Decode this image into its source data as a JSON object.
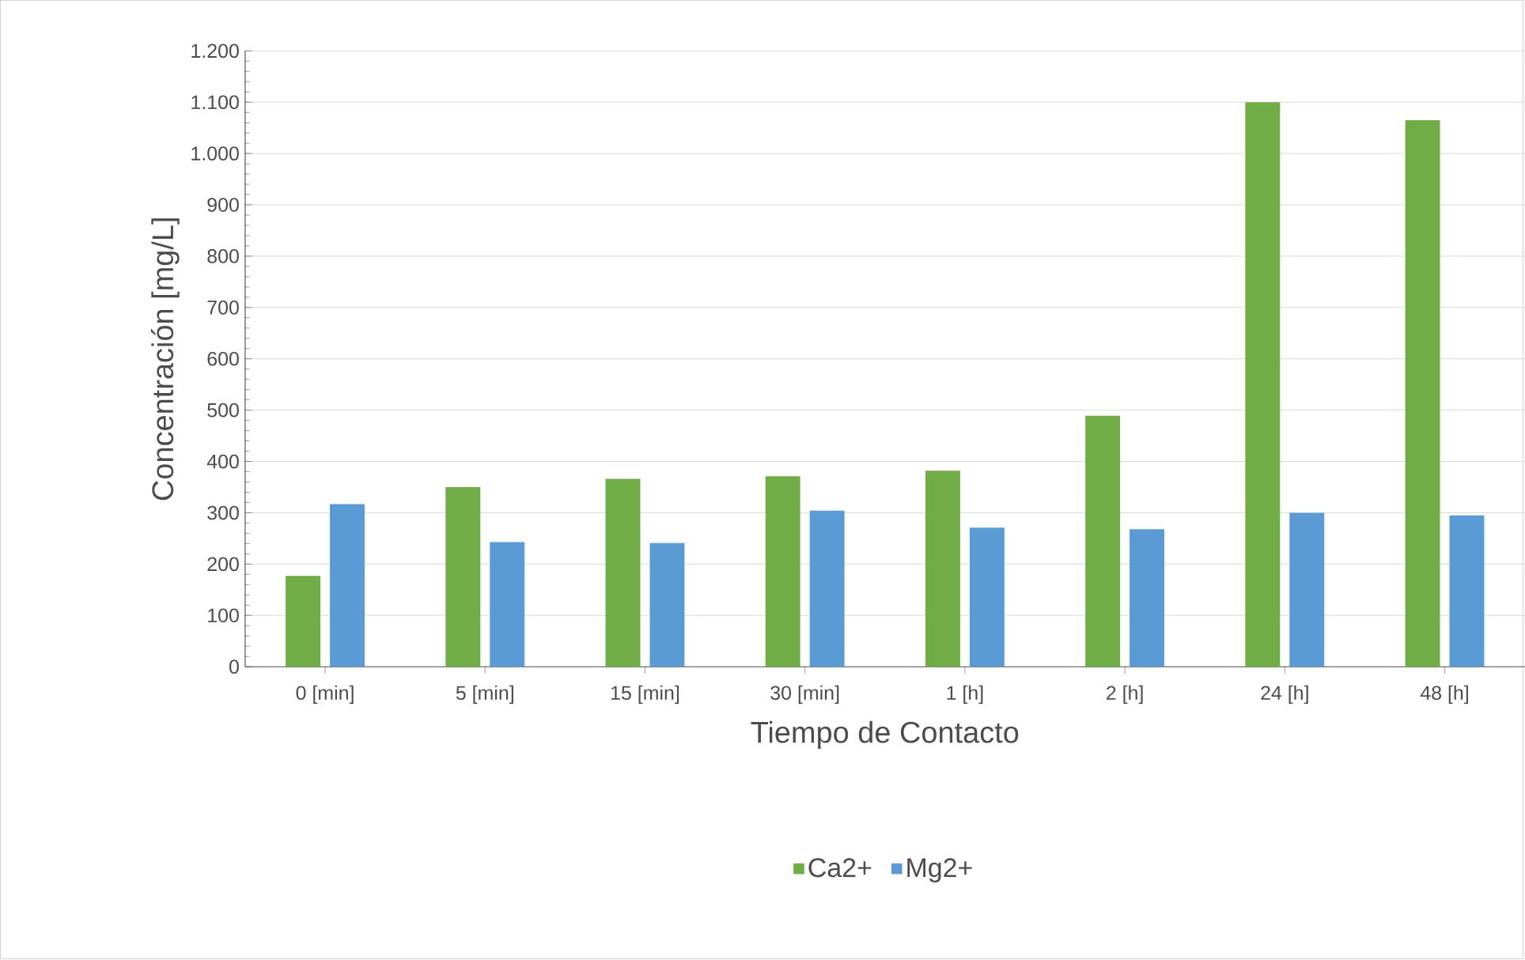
{
  "chart_data": {
    "type": "bar",
    "xlabel": "Tiempo de Contacto",
    "ylabel": "Concentración [mg/L]",
    "categories": [
      "0 [min]",
      "5 [min]",
      "15 [min]",
      "30 [min]",
      "1 [h]",
      "2 [h]",
      "24 [h]",
      "48 [h]"
    ],
    "series": [
      {
        "name": "Ca2+",
        "color": "#70ad47",
        "values": [
          177,
          350,
          366,
          371,
          382,
          489,
          1100,
          1065
        ]
      },
      {
        "name": "Mg2+",
        "color": "#5b9bd5",
        "values": [
          317,
          243,
          241,
          304,
          271,
          268,
          300,
          295
        ]
      }
    ],
    "ylim": [
      0,
      1200
    ],
    "yticks": [
      0,
      100,
      200,
      300,
      400,
      500,
      600,
      700,
      800,
      900,
      {
        "value": 1000,
        "label": "1.000"
      },
      {
        "value": 1100,
        "label": "1.100"
      },
      {
        "value": 1200,
        "label": "1.200"
      }
    ],
    "grid": "y",
    "legend": "bottom"
  }
}
